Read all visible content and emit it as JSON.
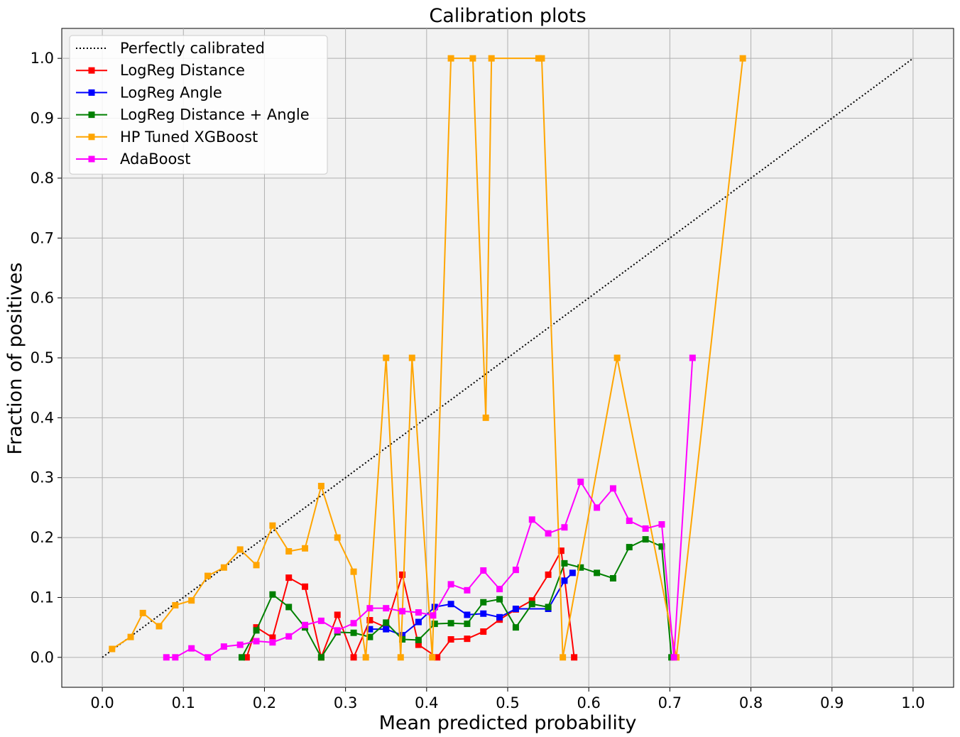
{
  "chart_data": {
    "type": "line",
    "title": "Calibration plots",
    "xlabel": "Mean predicted probability",
    "ylabel": "Fraction of positives",
    "xlim": [
      -0.05,
      1.05
    ],
    "ylim": [
      -0.05,
      1.05
    ],
    "xticks": [
      "0.0",
      "0.1",
      "0.2",
      "0.3",
      "0.4",
      "0.5",
      "0.6",
      "0.7",
      "0.8",
      "0.9",
      "1.0"
    ],
    "yticks": [
      "0.0",
      "0.1",
      "0.2",
      "0.3",
      "0.4",
      "0.5",
      "0.6",
      "0.7",
      "0.8",
      "0.9",
      "1.0"
    ],
    "grid": true,
    "legend_position": "upper-left",
    "background_color": "#f2f2f2",
    "reference": {
      "name": "Perfectly calibrated",
      "color": "#000000",
      "style": "dotted",
      "x": [
        0.0,
        1.0
      ],
      "y": [
        0.0,
        1.0
      ]
    },
    "series": [
      {
        "name": "LogReg Distance",
        "color": "#ff0000",
        "marker": "square",
        "x": [
          0.178,
          0.19,
          0.21,
          0.23,
          0.25,
          0.27,
          0.29,
          0.31,
          0.33,
          0.35,
          0.37,
          0.39,
          0.413,
          0.43,
          0.45,
          0.47,
          0.49,
          0.51,
          0.53,
          0.55,
          0.566,
          0.582
        ],
        "y": [
          0.0,
          0.05,
          0.033,
          0.133,
          0.118,
          0.0,
          0.071,
          0.0,
          0.062,
          0.05,
          0.138,
          0.021,
          0.0,
          0.03,
          0.031,
          0.043,
          0.063,
          0.08,
          0.095,
          0.138,
          0.178,
          0.0
        ]
      },
      {
        "name": "LogReg Angle",
        "color": "#0000ff",
        "marker": "square",
        "x": [
          0.33,
          0.35,
          0.37,
          0.39,
          0.41,
          0.43,
          0.45,
          0.47,
          0.49,
          0.51,
          0.55,
          0.57,
          0.58
        ],
        "y": [
          0.047,
          0.047,
          0.037,
          0.059,
          0.084,
          0.089,
          0.071,
          0.073,
          0.067,
          0.081,
          0.081,
          0.128,
          0.141
        ]
      },
      {
        "name": "LogReg Distance + Angle",
        "color": "#008000",
        "marker": "square",
        "x": [
          0.172,
          0.19,
          0.21,
          0.23,
          0.25,
          0.27,
          0.29,
          0.31,
          0.33,
          0.35,
          0.37,
          0.39,
          0.41,
          0.43,
          0.45,
          0.47,
          0.49,
          0.51,
          0.53,
          0.55,
          0.57,
          0.59,
          0.61,
          0.63,
          0.65,
          0.67,
          0.69,
          0.702
        ],
        "y": [
          0.0,
          0.045,
          0.105,
          0.084,
          0.05,
          0.0,
          0.042,
          0.041,
          0.034,
          0.058,
          0.03,
          0.029,
          0.056,
          0.057,
          0.056,
          0.092,
          0.097,
          0.05,
          0.089,
          0.084,
          0.157,
          0.15,
          0.141,
          0.132,
          0.184,
          0.197,
          0.185,
          0.0
        ]
      },
      {
        "name": "HP Tuned XGBoost",
        "color": "#ffa500",
        "marker": "square",
        "x": [
          0.012,
          0.035,
          0.05,
          0.07,
          0.09,
          0.11,
          0.13,
          0.15,
          0.17,
          0.19,
          0.21,
          0.23,
          0.25,
          0.27,
          0.29,
          0.31,
          0.325,
          0.35,
          0.368,
          0.382,
          0.407,
          0.43,
          0.457,
          0.473,
          0.48,
          0.538,
          0.542,
          0.568,
          0.635,
          0.708,
          0.79
        ],
        "y": [
          0.014,
          0.034,
          0.074,
          0.052,
          0.087,
          0.095,
          0.136,
          0.15,
          0.18,
          0.154,
          0.22,
          0.177,
          0.182,
          0.286,
          0.2,
          0.143,
          0.0,
          0.5,
          0.0,
          0.5,
          0.0,
          1.0,
          1.0,
          0.4,
          1.0,
          1.0,
          1.0,
          0.0,
          0.5,
          0.0,
          1.0
        ]
      },
      {
        "name": "AdaBoost",
        "color": "#ff00ff",
        "marker": "square",
        "x": [
          0.079,
          0.09,
          0.11,
          0.13,
          0.15,
          0.17,
          0.19,
          0.21,
          0.23,
          0.25,
          0.27,
          0.29,
          0.31,
          0.33,
          0.35,
          0.37,
          0.39,
          0.408,
          0.43,
          0.45,
          0.47,
          0.49,
          0.51,
          0.53,
          0.55,
          0.57,
          0.59,
          0.61,
          0.63,
          0.65,
          0.67,
          0.69,
          0.705,
          0.728
        ],
        "y": [
          0.0,
          0.0,
          0.015,
          0.0,
          0.018,
          0.021,
          0.027,
          0.025,
          0.035,
          0.054,
          0.061,
          0.045,
          0.057,
          0.082,
          0.082,
          0.077,
          0.075,
          0.07,
          0.122,
          0.112,
          0.145,
          0.114,
          0.146,
          0.23,
          0.207,
          0.217,
          0.293,
          0.25,
          0.282,
          0.228,
          0.215,
          0.222,
          0.0,
          0.5
        ]
      }
    ]
  }
}
